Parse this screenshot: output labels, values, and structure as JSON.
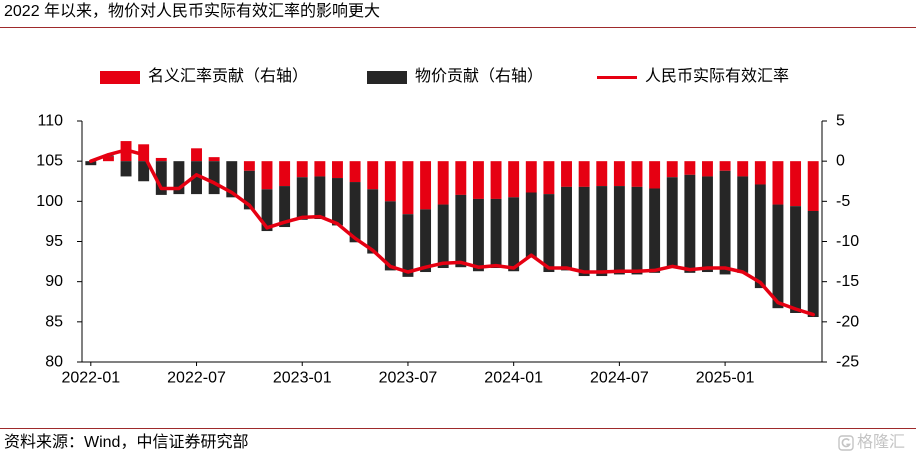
{
  "colors": {
    "nominal_bar": "#E60012",
    "price_bar": "#262626",
    "reer_line": "#E60012",
    "rule": "#9E2A2B",
    "watermark": "#C4C4C4"
  },
  "chart_data": {
    "type": "bar",
    "title": "2022 年以来，物价对人民币实际有效汇率的影响更大",
    "stacked": true,
    "grid": false,
    "legend": "top",
    "x": [
      "2022-01",
      "2022-02",
      "2022-03",
      "2022-04",
      "2022-05",
      "2022-06",
      "2022-07",
      "2022-08",
      "2022-09",
      "2022-10",
      "2022-11",
      "2022-12",
      "2023-01",
      "2023-02",
      "2023-03",
      "2023-04",
      "2023-05",
      "2023-06",
      "2023-07",
      "2023-08",
      "2023-09",
      "2023-10",
      "2023-11",
      "2023-12",
      "2024-01",
      "2024-02",
      "2024-03",
      "2024-04",
      "2024-05",
      "2024-06",
      "2024-07",
      "2024-08",
      "2024-09",
      "2024-10",
      "2024-11",
      "2024-12",
      "2025-01",
      "2025-02",
      "2025-03",
      "2025-04",
      "2025-05",
      "2025-06"
    ],
    "xticks": [
      "2022-01",
      "2022-07",
      "2023-01",
      "2023-07",
      "2024-01",
      "2024-07",
      "2025-01"
    ],
    "series": [
      {
        "name": "名义汇率贡献（右轴）",
        "type": "bar",
        "axis": "right",
        "values": [
          0.0,
          0.6,
          2.5,
          2.1,
          0.4,
          0.0,
          1.6,
          0.5,
          0.0,
          -1.2,
          -3.5,
          -3.1,
          -2.0,
          -1.9,
          -2.1,
          -2.6,
          -3.5,
          -5.0,
          -6.6,
          -6.0,
          -5.4,
          -4.2,
          -4.7,
          -4.7,
          -4.5,
          -3.9,
          -4.1,
          -3.2,
          -3.2,
          -3.1,
          -3.1,
          -3.2,
          -3.4,
          -2.0,
          -1.7,
          -1.9,
          -1.2,
          -1.9,
          -2.9,
          -5.4,
          -5.6,
          -6.2
        ]
      },
      {
        "name": "物价贡献（右轴）",
        "type": "bar",
        "axis": "right",
        "values": [
          -0.5,
          0.1,
          -1.9,
          -2.5,
          -4.2,
          -4.1,
          -4.1,
          -4.1,
          -4.5,
          -4.8,
          -5.2,
          -5.1,
          -5.3,
          -5.3,
          -5.9,
          -7.5,
          -8.0,
          -8.6,
          -7.8,
          -7.8,
          -7.9,
          -9.0,
          -9.0,
          -8.6,
          -9.2,
          -8.1,
          -9.7,
          -10.4,
          -11.1,
          -11.2,
          -11.0,
          -10.9,
          -10.5,
          -11.3,
          -12.2,
          -11.9,
          -12.9,
          -12.0,
          -12.9,
          -12.9,
          -13.3,
          -13.2
        ]
      },
      {
        "name": "人民币实际有效汇率",
        "type": "line",
        "axis": "left",
        "values": [
          105.0,
          105.8,
          106.4,
          105.8,
          101.6,
          101.6,
          103.3,
          102.3,
          101.1,
          99.5,
          96.7,
          97.4,
          98.0,
          98.1,
          97.2,
          95.4,
          93.9,
          91.9,
          91.2,
          91.8,
          92.3,
          92.4,
          91.8,
          92.0,
          91.7,
          93.3,
          91.7,
          91.7,
          91.2,
          91.2,
          91.3,
          91.3,
          91.4,
          91.9,
          91.5,
          91.7,
          91.7,
          91.2,
          89.9,
          87.4,
          86.6,
          85.9
        ]
      }
    ],
    "ylim_left": [
      80,
      110
    ],
    "yticks_left": [
      80,
      85,
      90,
      95,
      100,
      105,
      110
    ],
    "ylim_right": [
      -25,
      5
    ],
    "yticks_right": [
      -25,
      -20,
      -15,
      -10,
      -5,
      0,
      5
    ]
  },
  "footer": {
    "source": "资料来源：Wind，中信证券研究部",
    "watermark": "格隆汇"
  }
}
